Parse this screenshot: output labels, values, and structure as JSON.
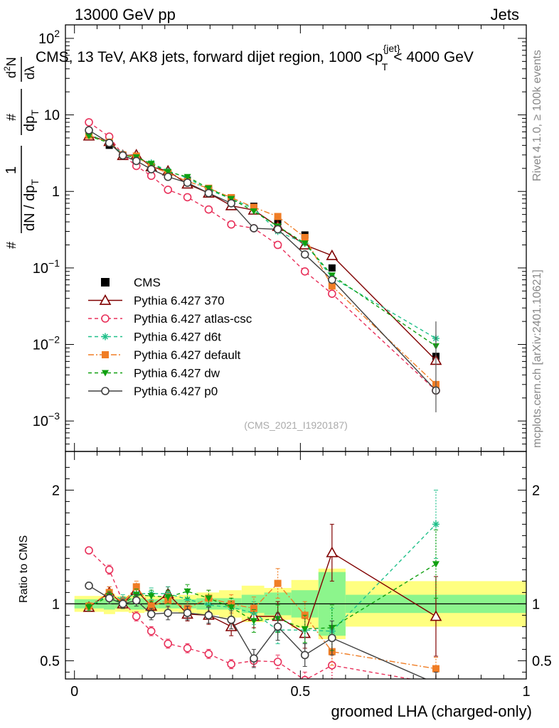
{
  "header": {
    "left": "13000 GeV pp",
    "right": "Jets",
    "title": "CMS, 13 TeV, AK8 jets, forward dijet region, 1000 <p",
    "title_sup": "{jet}",
    "title_sub": "T",
    "title_tail": "< 4000 GeV"
  },
  "side": {
    "rivet": "Rivet 4.1.0, ≥ 100k events",
    "mcplots": "mcplots.cern.ch [arXiv:2401.10621]"
  },
  "watermark": "(CMS_2021_I1920187)",
  "ylabel_main": {
    "num_hash": "#",
    "num_top": "1",
    "num_bot": "dN / dp",
    "num_bot_sub": "T",
    "frac_top": "#",
    "frac_bot": "dp",
    "frac_bot_sub": "T",
    "right": "d",
    "right_sup": "2",
    "right_top": "N",
    "right_bot": "dλ"
  },
  "ylabel_ratio": "Ratio to CMS",
  "xlabel": "groomed LHA (charged-only)",
  "chart_data": [
    {
      "type": "line",
      "panel": "main",
      "yscale": "log",
      "xlim": [
        -0.02,
        1.0
      ],
      "ylim": [
        0.0004,
        150
      ],
      "y_ticks": [
        {
          "v": 0.001,
          "b": "10",
          "e": "−3"
        },
        {
          "v": 0.01,
          "b": "10",
          "e": "−2"
        },
        {
          "v": 0.1,
          "b": "10",
          "e": "−1"
        },
        {
          "v": 1,
          "b": "1",
          "e": ""
        },
        {
          "v": 10,
          "b": "10",
          "e": ""
        },
        {
          "v": 100,
          "b": "10",
          "e": "2"
        }
      ],
      "x": [
        0.032,
        0.077,
        0.107,
        0.137,
        0.17,
        0.207,
        0.25,
        0.297,
        0.347,
        0.397,
        0.45,
        0.51,
        0.57,
        0.8
      ],
      "series": [
        {
          "name": "CMS",
          "color": "#000000",
          "marker": "square",
          "line": "none",
          "values": [
            5.4,
            4.0,
            2.95,
            2.6,
            2.15,
            1.7,
            1.4,
            1.05,
            0.82,
            0.64,
            0.4,
            0.27,
            0.1,
            0.007
          ]
        },
        {
          "name": "Pythia 6.427 370",
          "color": "#800000",
          "marker": "triangle-open",
          "line": "solid",
          "values": [
            5.3,
            4.5,
            2.95,
            3.0,
            2.1,
            1.85,
            1.25,
            0.95,
            0.65,
            0.57,
            0.35,
            0.2,
            0.145,
            0.0062
          ]
        },
        {
          "name": "Pythia 6.427 atlas-csc",
          "color": "#e8305a",
          "marker": "circle-open",
          "line": "dashed",
          "values": [
            8.0,
            5.2,
            3.0,
            2.15,
            1.6,
            1.05,
            0.84,
            0.58,
            0.37,
            0.33,
            0.2,
            0.09,
            0.046,
            0.0025
          ]
        },
        {
          "name": "Pythia 6.427 d6t",
          "color": "#20c08a",
          "marker": "star",
          "line": "dashed",
          "values": [
            5.6,
            4.3,
            3.1,
            2.7,
            2.35,
            1.85,
            1.5,
            1.05,
            0.8,
            0.6,
            0.3,
            0.21,
            0.075,
            0.012
          ]
        },
        {
          "name": "Pythia 6.427 default",
          "color": "#f07d25",
          "marker": "square",
          "line": "dashdot",
          "values": [
            5.4,
            4.4,
            3.0,
            2.9,
            2.1,
            1.75,
            1.35,
            1.1,
            0.83,
            0.62,
            0.47,
            0.25,
            0.058,
            0.003
          ]
        },
        {
          "name": "Pythia 6.427 dw",
          "color": "#10a010",
          "marker": "triangle-down",
          "line": "dashed",
          "values": [
            5.3,
            4.3,
            2.95,
            2.8,
            2.3,
            1.8,
            1.55,
            1.1,
            0.8,
            0.55,
            0.35,
            0.21,
            0.08,
            0.0095
          ]
        },
        {
          "name": "Pythia 6.427 p0",
          "color": "#404040",
          "marker": "circle-open",
          "line": "solid",
          "values": [
            6.3,
            4.3,
            2.95,
            2.5,
            1.95,
            1.55,
            1.3,
            0.95,
            0.7,
            0.33,
            0.32,
            0.15,
            0.07,
            0.0025
          ]
        }
      ]
    },
    {
      "type": "line",
      "panel": "ratio",
      "xlim": [
        -0.02,
        1.0
      ],
      "ylim": [
        0.34,
        2.34
      ],
      "y_ticks": [
        0.5,
        1,
        2
      ],
      "x_ticks": [
        {
          "v": 0,
          "label": "0"
        },
        {
          "v": 0.5,
          "label": "0.5"
        },
        {
          "v": 1,
          "label": "1"
        }
      ],
      "bins": [
        0.0,
        0.065,
        0.09,
        0.12,
        0.155,
        0.185,
        0.23,
        0.27,
        0.32,
        0.37,
        0.42,
        0.48,
        0.54,
        0.6,
        1.0
      ],
      "band_inner": [
        0.04,
        0.05,
        0.04,
        0.05,
        0.04,
        0.04,
        0.04,
        0.05,
        0.05,
        0.08,
        0.1,
        0.12,
        0.28,
        0.08
      ],
      "band_outer": [
        0.07,
        0.09,
        0.07,
        0.08,
        0.07,
        0.07,
        0.08,
        0.1,
        0.12,
        0.16,
        0.14,
        0.21,
        0.31,
        0.2
      ],
      "x": [
        0.032,
        0.077,
        0.107,
        0.137,
        0.17,
        0.207,
        0.25,
        0.297,
        0.347,
        0.397,
        0.45,
        0.51,
        0.57,
        0.8
      ],
      "series": [
        {
          "name": "Pythia 6.427 370",
          "color": "#800000",
          "marker": "triangle-open",
          "line": "solid",
          "values": [
            0.97,
            1.1,
            1.0,
            1.12,
            0.98,
            1.09,
            0.91,
            0.9,
            0.8,
            0.89,
            0.89,
            0.74,
            1.45,
            0.89
          ],
          "errors": [
            0.03,
            0.05,
            0.04,
            0.05,
            0.05,
            0.06,
            0.06,
            0.08,
            0.08,
            0.1,
            0.13,
            0.13,
            0.25,
            0.35
          ]
        },
        {
          "name": "Pythia 6.427 atlas-csc",
          "color": "#e8305a",
          "marker": "circle-open",
          "line": "dashed",
          "values": [
            1.47,
            1.3,
            1.02,
            0.89,
            0.76,
            0.65,
            0.61,
            0.56,
            0.47,
            0.5,
            0.49,
            0.33,
            0.46,
            0.3
          ],
          "errors": [
            0.03,
            0.04,
            0.04,
            0.04,
            0.04,
            0.04,
            0.04,
            0.04,
            0.04,
            0.05,
            0.06,
            0.07,
            0.12,
            0.1
          ]
        },
        {
          "name": "Pythia 6.427 d6t",
          "color": "#20c08a",
          "marker": "star",
          "line": "dashed",
          "values": [
            0.98,
            1.08,
            1.04,
            1.09,
            1.09,
            1.09,
            1.04,
            0.99,
            0.97,
            0.92,
            0.77,
            0.77,
            0.76,
            1.7
          ],
          "errors": [
            0.03,
            0.04,
            0.04,
            0.05,
            0.05,
            0.06,
            0.06,
            0.07,
            0.08,
            0.1,
            0.12,
            0.12,
            0.2,
            0.3
          ]
        },
        {
          "name": "Pythia 6.427 default",
          "color": "#f07d25",
          "marker": "square",
          "line": "dashdot",
          "values": [
            0.98,
            1.1,
            1.01,
            1.15,
            0.98,
            1.03,
            0.96,
            1.05,
            1.0,
            0.96,
            1.18,
            0.9,
            0.58,
            0.43
          ],
          "errors": [
            0.03,
            0.05,
            0.04,
            0.05,
            0.05,
            0.06,
            0.06,
            0.07,
            0.08,
            0.1,
            0.13,
            0.12,
            0.12,
            0.1
          ]
        },
        {
          "name": "Pythia 6.427 dw",
          "color": "#10a010",
          "marker": "triangle-down",
          "line": "dashed",
          "values": [
            0.97,
            1.07,
            1.0,
            1.08,
            1.07,
            1.06,
            1.11,
            1.05,
            0.97,
            0.85,
            0.87,
            0.78,
            0.79,
            1.35
          ],
          "errors": [
            0.03,
            0.04,
            0.04,
            0.05,
            0.05,
            0.06,
            0.06,
            0.07,
            0.08,
            0.1,
            0.12,
            0.12,
            0.2,
            0.3
          ]
        },
        {
          "name": "Pythia 6.427 p0",
          "color": "#404040",
          "marker": "circle-open",
          "line": "solid",
          "values": [
            1.16,
            1.05,
            1.0,
            1.03,
            0.91,
            0.92,
            0.92,
            0.9,
            0.86,
            0.52,
            0.8,
            0.55,
            0.7,
            0.3
          ],
          "errors": [
            0.03,
            0.05,
            0.04,
            0.05,
            0.05,
            0.06,
            0.06,
            0.07,
            0.08,
            0.08,
            0.12,
            0.1,
            0.15,
            0.1
          ]
        }
      ]
    }
  ]
}
